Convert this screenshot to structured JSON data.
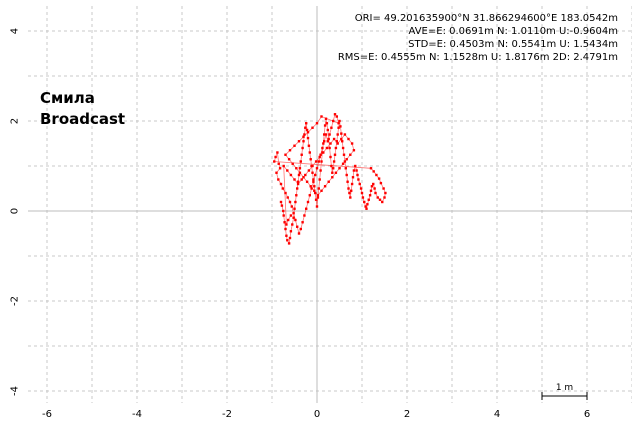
{
  "stats": {
    "ori": "ORI= 49.201635900°N  31.866294600°E 183.0542m",
    "ave": "AVE=E: 0.0691m N: 1.0110m U:-0.9604m",
    "std": "STD=E: 0.4503m N: 0.5541m U: 1.5434m",
    "rms": "RMS=E: 0.4555m N: 1.1528m U: 1.8176m 2D: 2.4791m"
  },
  "site": {
    "name": "Смила",
    "mode": "Broadcast"
  },
  "scale_bar": {
    "label": "1 m",
    "length_m": 1
  },
  "colors": {
    "points": "#ff0000",
    "grid": "#c8c8c8",
    "axis": "#bdbdbd",
    "text": "#000000"
  },
  "chart_data": {
    "type": "scatter",
    "title": "",
    "xlabel": "",
    "ylabel": "",
    "xlim": [
      -6.8,
      6.8
    ],
    "ylim": [
      -4.2,
      4.5
    ],
    "x_ticks": [
      "-6",
      "-4",
      "-2",
      "0",
      "2",
      "4",
      "6"
    ],
    "x_tick_values": [
      -6,
      -4,
      -2,
      0,
      2,
      4,
      6
    ],
    "y_ticks": [
      "4",
      "2",
      "0",
      "-2",
      "-4"
    ],
    "y_tick_values": [
      4,
      2,
      0,
      -2,
      -4
    ],
    "grid": true,
    "series": [
      {
        "values_note_free": true,
        "points": [
          [
            -0.8,
            0.2
          ],
          [
            -0.78,
            0.12
          ],
          [
            -0.75,
            0.0
          ],
          [
            -0.74,
            -0.1
          ],
          [
            -0.72,
            -0.25
          ],
          [
            -0.7,
            -0.4
          ],
          [
            -0.68,
            -0.55
          ],
          [
            -0.66,
            -0.65
          ],
          [
            -0.62,
            -0.72
          ],
          [
            -0.6,
            -0.6
          ],
          [
            -0.58,
            -0.45
          ],
          [
            -0.55,
            -0.3
          ],
          [
            -0.52,
            -0.15
          ],
          [
            -0.5,
            0.05
          ],
          [
            -0.48,
            0.2
          ],
          [
            -0.46,
            0.35
          ],
          [
            -0.44,
            0.5
          ],
          [
            -0.42,
            0.65
          ],
          [
            -0.4,
            0.8
          ],
          [
            -0.38,
            0.95
          ],
          [
            -0.36,
            1.1
          ],
          [
            -0.34,
            1.25
          ],
          [
            -0.32,
            1.4
          ],
          [
            -0.3,
            1.55
          ],
          [
            -0.28,
            1.7
          ],
          [
            -0.26,
            1.85
          ],
          [
            -0.24,
            1.95
          ],
          [
            -0.22,
            1.8
          ],
          [
            -0.2,
            1.62
          ],
          [
            -0.18,
            1.45
          ],
          [
            -0.16,
            1.3
          ],
          [
            -0.14,
            1.15
          ],
          [
            -0.12,
            1.0
          ],
          [
            -0.1,
            0.85
          ],
          [
            -0.08,
            0.7
          ],
          [
            -0.06,
            0.55
          ],
          [
            -0.04,
            0.4
          ],
          [
            -0.02,
            0.25
          ],
          [
            0.0,
            0.1
          ],
          [
            0.02,
            0.3
          ],
          [
            0.04,
            0.5
          ],
          [
            0.06,
            0.7
          ],
          [
            0.08,
            0.9
          ],
          [
            0.1,
            1.1
          ],
          [
            0.12,
            1.3
          ],
          [
            0.14,
            1.5
          ],
          [
            0.16,
            1.7
          ],
          [
            0.18,
            1.9
          ],
          [
            0.2,
            2.05
          ],
          [
            0.22,
            1.95
          ],
          [
            0.24,
            1.8
          ],
          [
            0.26,
            1.6
          ],
          [
            0.28,
            1.4
          ],
          [
            0.3,
            1.2
          ],
          [
            0.32,
            1.0
          ],
          [
            0.34,
            0.85
          ],
          [
            0.36,
            0.95
          ],
          [
            0.38,
            1.1
          ],
          [
            0.4,
            1.25
          ],
          [
            0.42,
            1.4
          ],
          [
            0.44,
            1.55
          ],
          [
            0.46,
            1.7
          ],
          [
            0.48,
            1.85
          ],
          [
            0.5,
            2.0
          ],
          [
            0.52,
            1.88
          ],
          [
            0.54,
            1.72
          ],
          [
            0.56,
            1.55
          ],
          [
            0.58,
            1.4
          ],
          [
            0.6,
            1.25
          ],
          [
            0.62,
            1.1
          ],
          [
            0.64,
            0.95
          ],
          [
            0.66,
            0.8
          ],
          [
            0.68,
            0.65
          ],
          [
            0.7,
            0.5
          ],
          [
            0.72,
            0.4
          ],
          [
            0.74,
            0.3
          ],
          [
            0.76,
            0.45
          ],
          [
            0.78,
            0.6
          ],
          [
            0.8,
            0.75
          ],
          [
            0.82,
            0.9
          ],
          [
            0.85,
            1.0
          ],
          [
            0.88,
            0.9
          ],
          [
            0.9,
            0.8
          ],
          [
            0.92,
            0.7
          ],
          [
            0.95,
            0.6
          ],
          [
            0.98,
            0.5
          ],
          [
            1.0,
            0.4
          ],
          [
            1.02,
            0.3
          ],
          [
            1.05,
            0.2
          ],
          [
            1.08,
            0.1
          ],
          [
            1.1,
            0.05
          ],
          [
            1.12,
            0.15
          ],
          [
            1.15,
            0.25
          ],
          [
            1.18,
            0.35
          ],
          [
            1.2,
            0.45
          ],
          [
            1.22,
            0.55
          ],
          [
            1.25,
            0.6
          ],
          [
            1.28,
            0.5
          ],
          [
            1.3,
            0.4
          ],
          [
            1.35,
            0.3
          ],
          [
            1.4,
            0.25
          ],
          [
            1.45,
            0.2
          ],
          [
            1.5,
            0.3
          ],
          [
            1.52,
            0.4
          ],
          [
            1.48,
            0.5
          ],
          [
            1.42,
            0.62
          ],
          [
            1.38,
            0.72
          ],
          [
            1.32,
            0.8
          ],
          [
            1.26,
            0.88
          ],
          [
            1.2,
            0.95
          ],
          [
            -0.95,
            1.1
          ],
          [
            -0.92,
            1.2
          ],
          [
            -0.88,
            1.3
          ],
          [
            -0.85,
            1.05
          ],
          [
            -0.82,
            0.95
          ],
          [
            -0.9,
            0.85
          ],
          [
            -0.86,
            0.7
          ],
          [
            -0.8,
            0.6
          ],
          [
            -0.76,
            0.5
          ],
          [
            -0.7,
            0.4
          ],
          [
            -0.65,
            0.3
          ],
          [
            -0.6,
            0.2
          ],
          [
            -0.56,
            0.1
          ],
          [
            -0.52,
            -0.05
          ],
          [
            -0.48,
            -0.2
          ],
          [
            -0.44,
            -0.35
          ],
          [
            -0.4,
            -0.5
          ],
          [
            -0.36,
            -0.4
          ],
          [
            -0.32,
            -0.25
          ],
          [
            -0.28,
            -0.1
          ],
          [
            -0.24,
            0.05
          ],
          [
            -0.2,
            0.2
          ],
          [
            -0.16,
            0.35
          ],
          [
            -0.12,
            0.5
          ],
          [
            -0.08,
            0.65
          ],
          [
            -0.04,
            0.8
          ],
          [
            0.0,
            0.95
          ],
          [
            0.04,
            1.1
          ],
          [
            0.08,
            1.25
          ],
          [
            0.12,
            1.4
          ],
          [
            0.16,
            1.55
          ],
          [
            0.2,
            1.7
          ],
          [
            0.24,
            1.55
          ],
          [
            0.28,
            1.7
          ],
          [
            0.32,
            1.85
          ],
          [
            0.36,
            2.0
          ],
          [
            0.4,
            2.15
          ],
          [
            0.44,
            2.1
          ],
          [
            0.48,
            1.95
          ],
          [
            0.1,
            2.1
          ],
          [
            0.0,
            1.95
          ],
          [
            -0.1,
            1.85
          ],
          [
            -0.2,
            1.75
          ],
          [
            -0.3,
            1.65
          ],
          [
            -0.4,
            1.55
          ],
          [
            -0.5,
            1.45
          ],
          [
            -0.6,
            1.35
          ],
          [
            -0.7,
            1.25
          ],
          [
            -0.62,
            1.15
          ],
          [
            -0.54,
            1.05
          ],
          [
            -0.46,
            0.95
          ],
          [
            -0.38,
            0.85
          ],
          [
            -0.3,
            0.75
          ],
          [
            -0.22,
            0.65
          ],
          [
            -0.14,
            0.55
          ],
          [
            -0.06,
            0.45
          ],
          [
            0.02,
            0.35
          ],
          [
            0.1,
            0.45
          ],
          [
            0.18,
            0.55
          ],
          [
            0.26,
            0.65
          ],
          [
            0.34,
            0.75
          ],
          [
            0.42,
            0.85
          ],
          [
            0.5,
            0.95
          ],
          [
            0.58,
            1.05
          ],
          [
            0.66,
            1.15
          ],
          [
            0.74,
            1.25
          ],
          [
            0.82,
            1.35
          ],
          [
            0.78,
            1.5
          ],
          [
            0.7,
            1.6
          ],
          [
            0.62,
            1.7
          ],
          [
            0.54,
            1.6
          ],
          [
            0.46,
            1.5
          ],
          [
            0.38,
            1.6
          ],
          [
            0.3,
            1.5
          ],
          [
            0.22,
            1.4
          ],
          [
            0.14,
            1.3
          ],
          [
            0.06,
            1.2
          ],
          [
            -0.02,
            1.1
          ],
          [
            -0.1,
            1.0
          ],
          [
            -0.18,
            0.9
          ],
          [
            -0.26,
            0.8
          ],
          [
            -0.34,
            0.7
          ],
          [
            -0.42,
            0.6
          ],
          [
            -0.5,
            0.7
          ],
          [
            -0.58,
            0.8
          ],
          [
            -0.66,
            0.9
          ],
          [
            -0.74,
            1.0
          ],
          [
            -0.68,
            -0.3
          ],
          [
            -0.64,
            -0.2
          ],
          [
            -0.58,
            -0.1
          ]
        ]
      }
    ]
  }
}
